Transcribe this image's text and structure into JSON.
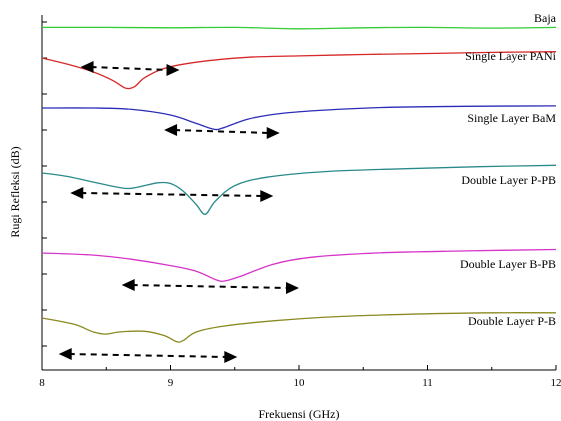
{
  "chart_data": {
    "type": "line",
    "title": "",
    "xlabel": "Frekuensi (GHz)",
    "ylabel": "Rugi Refleksi (dB)",
    "xlim": [
      8,
      12
    ],
    "x_ticks": [
      "8",
      "9",
      "10",
      "11",
      "12"
    ],
    "y_tick_labels_shown": false,
    "y_stacked_offset": true,
    "grid": false,
    "legend": "labels-beside-curves",
    "series": [
      {
        "name": "Baja",
        "color": "#33cc33",
        "points": [
          [
            8,
            0.8
          ],
          [
            8.5,
            0.8
          ],
          [
            9,
            0.75
          ],
          [
            9.5,
            0.8
          ],
          [
            10,
            0.6
          ],
          [
            10.5,
            0.75
          ],
          [
            11,
            0.8
          ],
          [
            11.5,
            0.7
          ],
          [
            12,
            0.8
          ]
        ]
      },
      {
        "name": "Single Layer PANi",
        "color": "#d62828",
        "points": [
          [
            8,
            0.0
          ],
          [
            8.2,
            -0.9
          ],
          [
            8.4,
            -2.0
          ],
          [
            8.55,
            -3.2
          ],
          [
            8.65,
            -4.3
          ],
          [
            8.72,
            -4.1
          ],
          [
            8.8,
            -2.8
          ],
          [
            8.95,
            -1.5
          ],
          [
            9.2,
            -0.6
          ],
          [
            9.6,
            0.1
          ],
          [
            10,
            0.3
          ],
          [
            10.5,
            0.5
          ],
          [
            11,
            0.65
          ],
          [
            11.5,
            0.8
          ],
          [
            12,
            0.9
          ]
        ]
      },
      {
        "name": "Single Layer BaM",
        "color": "#2b2bb8",
        "points": [
          [
            8,
            0.0
          ],
          [
            8.4,
            0.0
          ],
          [
            8.7,
            -0.2
          ],
          [
            9.0,
            -1.0
          ],
          [
            9.2,
            -2.2
          ],
          [
            9.33,
            -3.0
          ],
          [
            9.4,
            -2.9
          ],
          [
            9.6,
            -1.6
          ],
          [
            9.85,
            -0.8
          ],
          [
            10.2,
            -0.3
          ],
          [
            10.7,
            0.1
          ],
          [
            11.3,
            0.25
          ],
          [
            12,
            0.3
          ]
        ]
      },
      {
        "name": "Double Layer P-PB",
        "color": "#2a8a8a",
        "points": [
          [
            8,
            0.0
          ],
          [
            8.2,
            -0.5
          ],
          [
            8.45,
            -1.5
          ],
          [
            8.65,
            -2.2
          ],
          [
            8.75,
            -2.0
          ],
          [
            8.9,
            -1.4
          ],
          [
            9.0,
            -1.5
          ],
          [
            9.1,
            -2.6
          ],
          [
            9.2,
            -4.5
          ],
          [
            9.27,
            -5.9
          ],
          [
            9.35,
            -4.0
          ],
          [
            9.5,
            -1.8
          ],
          [
            9.75,
            -0.6
          ],
          [
            10.2,
            0.2
          ],
          [
            10.8,
            0.6
          ],
          [
            11.4,
            0.9
          ],
          [
            12,
            1.1
          ]
        ]
      },
      {
        "name": "Double Layer B-PB",
        "color": "#d633c8",
        "points": [
          [
            8,
            0.0
          ],
          [
            8.4,
            -0.3
          ],
          [
            8.7,
            -0.9
          ],
          [
            9.0,
            -1.8
          ],
          [
            9.2,
            -2.6
          ],
          [
            9.35,
            -3.8
          ],
          [
            9.42,
            -4.0
          ],
          [
            9.55,
            -3.3
          ],
          [
            9.8,
            -1.6
          ],
          [
            10.1,
            -0.6
          ],
          [
            10.6,
            0.0
          ],
          [
            11.3,
            0.3
          ],
          [
            12,
            0.5
          ]
        ]
      },
      {
        "name": "Double Layer P-B",
        "color": "#8a8a20",
        "points": [
          [
            8,
            0.0
          ],
          [
            8.25,
            -0.9
          ],
          [
            8.4,
            -2.0
          ],
          [
            8.5,
            -2.3
          ],
          [
            8.6,
            -2.0
          ],
          [
            8.8,
            -1.9
          ],
          [
            8.95,
            -2.5
          ],
          [
            9.05,
            -3.4
          ],
          [
            9.1,
            -3.2
          ],
          [
            9.2,
            -2.0
          ],
          [
            9.4,
            -1.2
          ],
          [
            9.8,
            -0.4
          ],
          [
            10.3,
            0.2
          ],
          [
            11,
            0.6
          ],
          [
            11.5,
            0.75
          ],
          [
            12,
            0.75
          ]
        ]
      }
    ],
    "annotations": [
      {
        "type": "double-arrow",
        "series": "Single Layer PANi",
        "x": [
          8.3,
          9.07
        ]
      },
      {
        "type": "double-arrow",
        "series": "Single Layer BaM",
        "x": [
          8.95,
          9.85
        ]
      },
      {
        "type": "double-arrow",
        "series": "Double Layer P-PB",
        "x": [
          8.22,
          9.8
        ]
      },
      {
        "type": "double-arrow",
        "series": "Double Layer B-PB",
        "x": [
          8.62,
          10.0
        ]
      },
      {
        "type": "double-arrow",
        "series": "Double Layer P-B",
        "x": [
          8.13,
          9.52
        ]
      }
    ]
  }
}
